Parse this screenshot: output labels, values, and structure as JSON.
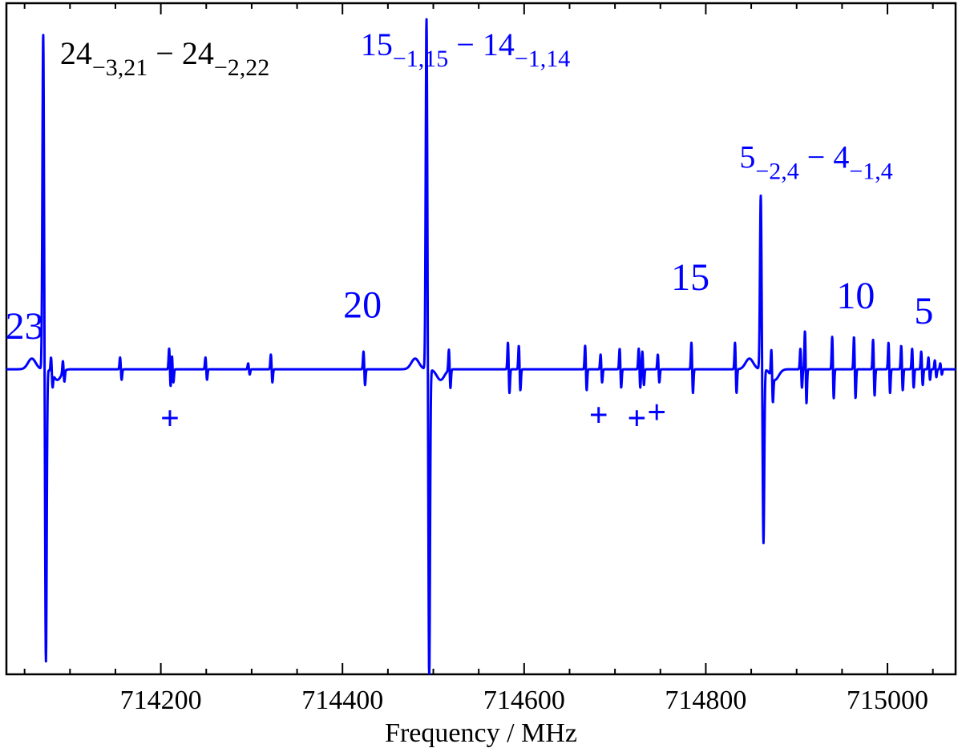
{
  "chart_data": {
    "type": "line",
    "title": "",
    "xlabel": "Frequency / MHz",
    "ylabel": "",
    "xlim": [
      714030,
      715075
    ],
    "ylim": [
      -1.0,
      1.2
    ],
    "x_ticks": [
      714200,
      714400,
      714600,
      714800,
      715000
    ],
    "x_tick_labels": [
      "714200",
      "714400",
      "714600",
      "714800",
      "715000"
    ],
    "grid": false,
    "series_color": "#0000ff",
    "strong_lines": [
      {
        "center": 714072,
        "top": 1.1,
        "bottom": -0.96
      },
      {
        "center": 714494,
        "top": 1.15,
        "bottom": -1.02
      },
      {
        "center": 714862,
        "top": 0.57,
        "bottom": -0.57
      }
    ],
    "weak_lines": [
      {
        "center": 714080,
        "amp": 0.05
      },
      {
        "center": 714093,
        "amp": 0.04
      },
      {
        "center": 714156,
        "amp": 0.04
      },
      {
        "center": 714210,
        "amp": 0.07
      },
      {
        "center": 714213,
        "amp": 0.05
      },
      {
        "center": 714250,
        "amp": 0.04
      },
      {
        "center": 714297,
        "amp": 0.02
      },
      {
        "center": 714322,
        "amp": 0.05
      },
      {
        "center": 714424,
        "amp": 0.06
      },
      {
        "center": 714518,
        "amp": 0.07
      },
      {
        "center": 714583,
        "amp": 0.09
      },
      {
        "center": 714595,
        "amp": 0.08
      },
      {
        "center": 714668,
        "amp": 0.08
      },
      {
        "center": 714685,
        "amp": 0.05
      },
      {
        "center": 714706,
        "amp": 0.07
      },
      {
        "center": 714727,
        "amp": 0.07
      },
      {
        "center": 714731,
        "amp": 0.06
      },
      {
        "center": 714748,
        "amp": 0.05
      },
      {
        "center": 714785,
        "amp": 0.09
      },
      {
        "center": 714833,
        "amp": 0.09
      },
      {
        "center": 714873,
        "amp": 0.09
      },
      {
        "center": 714905,
        "amp": 0.07
      },
      {
        "center": 714910,
        "amp": 0.13
      },
      {
        "center": 714940,
        "amp": 0.11
      },
      {
        "center": 714964,
        "amp": 0.11
      },
      {
        "center": 714985,
        "amp": 0.1
      },
      {
        "center": 715002,
        "amp": 0.09
      },
      {
        "center": 715016,
        "amp": 0.08
      },
      {
        "center": 715028,
        "amp": 0.07
      },
      {
        "center": 715038,
        "amp": 0.06
      },
      {
        "center": 715046,
        "amp": 0.04
      },
      {
        "center": 715053,
        "amp": 0.03
      },
      {
        "center": 715059,
        "amp": 0.02
      }
    ],
    "series_labels": [
      {
        "text": "23",
        "x": 714050,
        "y": 0.1
      },
      {
        "text": "20",
        "x": 714422,
        "y": 0.17
      },
      {
        "text": "15",
        "x": 714783,
        "y": 0.26
      },
      {
        "text": "10",
        "x": 714965,
        "y": 0.2
      },
      {
        "text": "5",
        "x": 715040,
        "y": 0.15
      }
    ],
    "unassigned_marker": "+",
    "unassigned_markers": [
      {
        "x": 714210,
        "y": -0.16
      },
      {
        "x": 714682,
        "y": -0.15
      },
      {
        "x": 714724,
        "y": -0.16
      },
      {
        "x": 714746,
        "y": -0.14
      }
    ],
    "line_labels": [
      {
        "J1": "24",
        "k1": "−3,21",
        "dash": "−",
        "J2": "24",
        "k2": "−2,22",
        "x": 714089,
        "y": 1.0,
        "color": "#000000"
      },
      {
        "J1": "15",
        "k1": "−1,15",
        "dash": "−",
        "J2": "14",
        "k2": "−1,14",
        "x": 714420,
        "y": 1.03,
        "color": "#0000ff"
      },
      {
        "J1": "5",
        "k1": "−2,4",
        "dash": "−",
        "J2": "4",
        "k2": "−1,4",
        "x": 714837,
        "y": 0.66,
        "color": "#0000ff"
      }
    ]
  }
}
